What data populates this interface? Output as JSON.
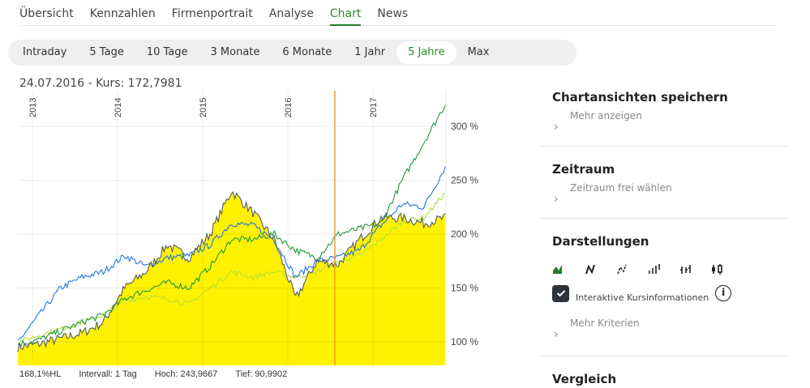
{
  "tabs": [
    {
      "label": "Übersicht",
      "active": false
    },
    {
      "label": "Kennzahlen",
      "active": false
    },
    {
      "label": "Firmenportrait",
      "active": false
    },
    {
      "label": "Analyse",
      "active": false
    },
    {
      "label": "Chart",
      "active": true
    },
    {
      "label": "News",
      "active": false
    }
  ],
  "ranges": [
    {
      "label": "Intraday",
      "active": false
    },
    {
      "label": "5 Tage",
      "active": false
    },
    {
      "label": "10 Tage",
      "active": false
    },
    {
      "label": "3 Monate",
      "active": false
    },
    {
      "label": "6 Monate",
      "active": false
    },
    {
      "label": "1 Jahr",
      "active": false
    },
    {
      "label": "5 Jahre",
      "active": true
    },
    {
      "label": "Max",
      "active": false
    }
  ],
  "cursor_info": "24.07.2016  -  Kurs: 172,7981",
  "footer": {
    "hl": "168,1%HL",
    "interval": "Intervall: 1 Tag",
    "high": "Hoch: 243,9667",
    "low": "Tief: 90,9902"
  },
  "sidebar": {
    "save_views": {
      "title": "Chartansichten speichern",
      "link": "Mehr anzeigen"
    },
    "period": {
      "title": "Zeitraum",
      "link": "Zeitraum frei wählen"
    },
    "display": {
      "title": "Darstellungen",
      "icons": [
        "area-chart-icon",
        "line-chart-icon",
        "dotted-line-chart-icon",
        "ohlc-bars-icon",
        "hlc-bars-icon",
        "candlestick-icon"
      ],
      "checkbox_label": "Interaktive Kursinformationen",
      "checkbox_checked": true,
      "link": "Mehr Kriterien"
    },
    "compare": {
      "title": "Vergleich"
    }
  },
  "colors": {
    "accent": "#2a8a2a",
    "area_fill": "#fff200",
    "main_line": "#555b60",
    "blue": "#1f78e0",
    "dark_green": "#1e9a3c",
    "light_green": "#b5e03a",
    "cursor": "#f39c32"
  },
  "chart_data": {
    "type": "line",
    "title": "",
    "xlabel": "",
    "ylabel": "",
    "x_ticks": [
      "2013",
      "2014",
      "2015",
      "2016",
      "2017"
    ],
    "y_ticks": [
      "100 %",
      "150 %",
      "200 %",
      "250 %",
      "300 %"
    ],
    "ylim": [
      78,
      330
    ],
    "grid": true,
    "cursor_date": "24.07.2016",
    "x": [
      "2012-10",
      "2013-01",
      "2013-04",
      "2013-07",
      "2013-10",
      "2014-01",
      "2014-04",
      "2014-07",
      "2014-10",
      "2015-01",
      "2015-04",
      "2015-07",
      "2015-10",
      "2016-01",
      "2016-04",
      "2016-07",
      "2016-10",
      "2017-01",
      "2017-04",
      "2017-07",
      "2017-10"
    ],
    "series": [
      {
        "name": "Main (area)",
        "values": [
          95,
          98,
          103,
          108,
          118,
          150,
          165,
          190,
          178,
          200,
          240,
          220,
          195,
          140,
          175,
          172,
          195,
          215,
          215,
          210,
          215
        ]
      },
      {
        "name": "Blue",
        "values": [
          100,
          125,
          150,
          160,
          165,
          180,
          170,
          178,
          180,
          190,
          210,
          208,
          195,
          160,
          175,
          178,
          185,
          208,
          228,
          225,
          262
        ]
      },
      {
        "name": "Dark green",
        "values": [
          98,
          102,
          110,
          118,
          125,
          140,
          148,
          155,
          150,
          170,
          195,
          195,
          200,
          185,
          178,
          200,
          205,
          210,
          250,
          285,
          320
        ]
      },
      {
        "name": "Light green",
        "values": [
          100,
          106,
          112,
          118,
          125,
          138,
          142,
          140,
          135,
          150,
          165,
          160,
          165,
          160,
          165,
          175,
          180,
          195,
          212,
          215,
          238
        ]
      }
    ]
  }
}
